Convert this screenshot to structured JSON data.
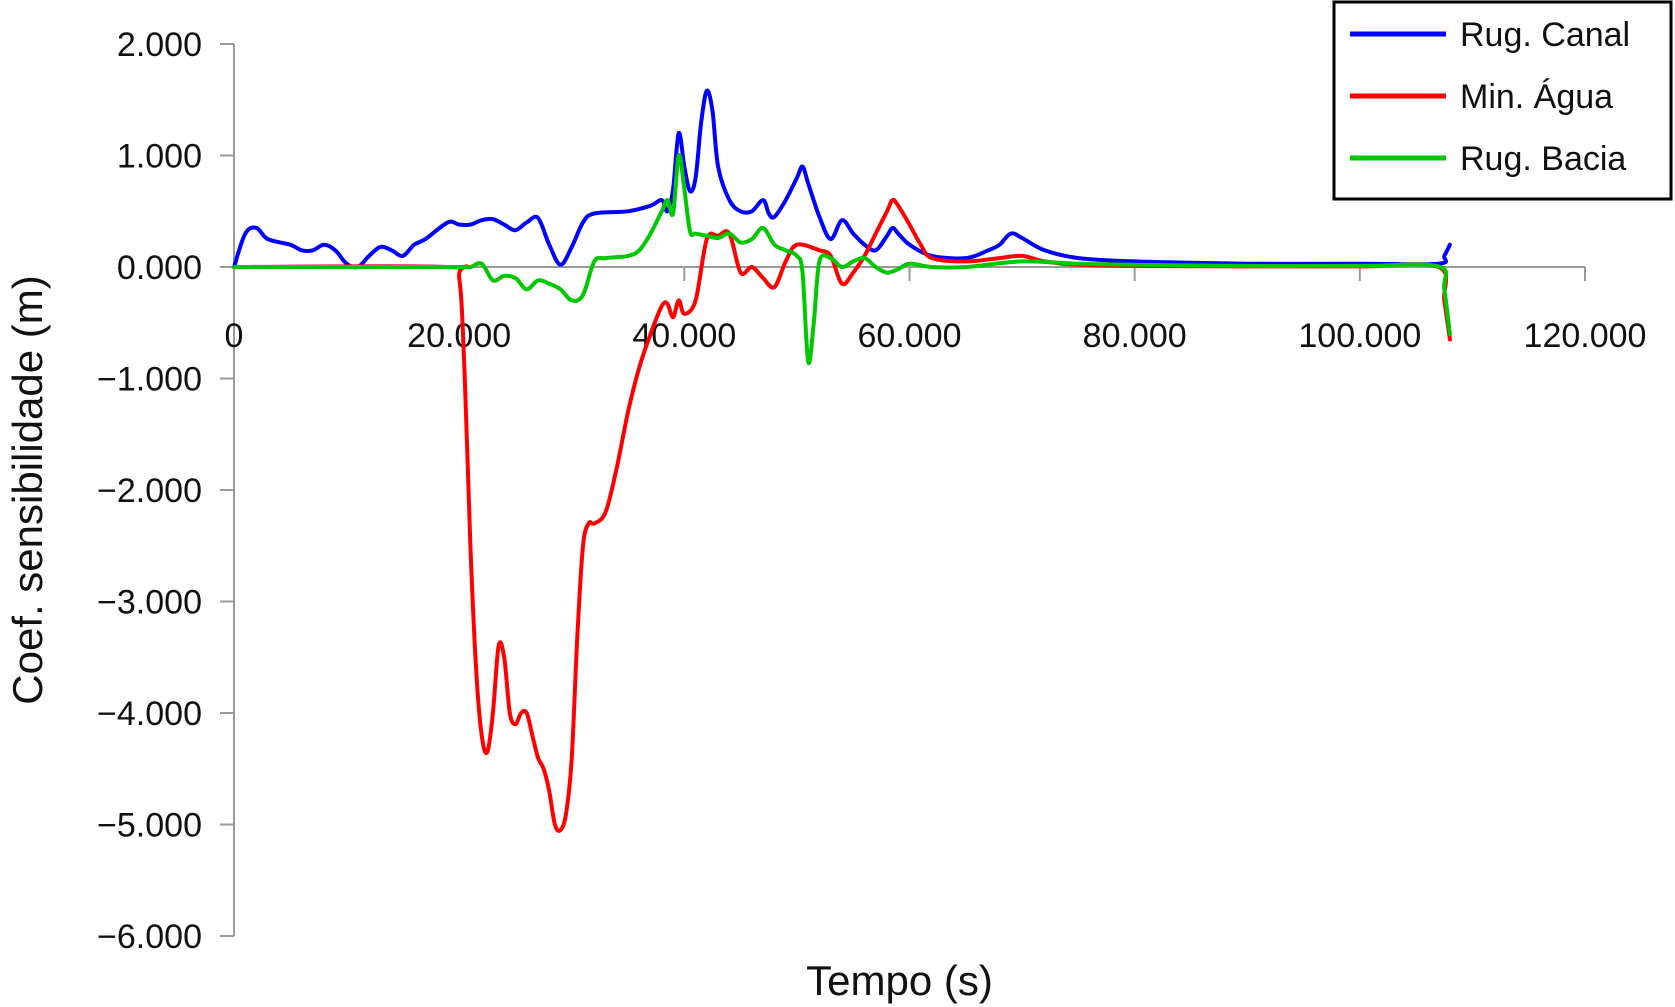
{
  "chart_data": {
    "type": "line",
    "xlabel": "Tempo (s)",
    "ylabel": "Coef. sensibilidade (m)",
    "xlim": [
      0,
      120000
    ],
    "ylim": [
      -6000,
      2000
    ],
    "x_ticks": [
      0,
      20000,
      40000,
      60000,
      80000,
      100000,
      120000
    ],
    "x_tick_labels": [
      "0",
      "20.000",
      "40.000",
      "60.000",
      "80.000",
      "100.000",
      "120.000"
    ],
    "y_ticks": [
      2000,
      1000,
      0,
      -1000,
      -2000,
      -3000,
      -4000,
      -5000,
      -6000
    ],
    "y_tick_labels": [
      "2.000",
      "1.000",
      "0.000",
      "−1.000",
      "−2.000",
      "−3.000",
      "−4.000",
      "−5.000",
      "−6.000"
    ],
    "grid": false,
    "legend_position": "top-right",
    "series": [
      {
        "name": "Rug. Canal",
        "color": "#0000ff",
        "points": [
          [
            0,
            0
          ],
          [
            1000,
            300
          ],
          [
            2000,
            350
          ],
          [
            3000,
            250
          ],
          [
            5000,
            200
          ],
          [
            6000,
            150
          ],
          [
            7000,
            150
          ],
          [
            8000,
            200
          ],
          [
            9000,
            150
          ],
          [
            10000,
            30
          ],
          [
            11000,
            0
          ],
          [
            12000,
            100
          ],
          [
            13000,
            180
          ],
          [
            14000,
            150
          ],
          [
            15000,
            100
          ],
          [
            16000,
            200
          ],
          [
            17000,
            250
          ],
          [
            19000,
            400
          ],
          [
            20000,
            380
          ],
          [
            21000,
            380
          ],
          [
            22000,
            420
          ],
          [
            23000,
            430
          ],
          [
            24000,
            380
          ],
          [
            25000,
            330
          ],
          [
            26000,
            400
          ],
          [
            27000,
            440
          ],
          [
            28000,
            200
          ],
          [
            29000,
            20
          ],
          [
            30000,
            180
          ],
          [
            31000,
            400
          ],
          [
            32000,
            480
          ],
          [
            35000,
            500
          ],
          [
            37000,
            550
          ],
          [
            38000,
            600
          ],
          [
            38500,
            500
          ],
          [
            39000,
            700
          ],
          [
            39500,
            1200
          ],
          [
            40000,
            900
          ],
          [
            40500,
            680
          ],
          [
            41000,
            800
          ],
          [
            41500,
            1300
          ],
          [
            42000,
            1580
          ],
          [
            42500,
            1400
          ],
          [
            43000,
            900
          ],
          [
            44000,
            600
          ],
          [
            45000,
            500
          ],
          [
            46000,
            500
          ],
          [
            47000,
            600
          ],
          [
            47500,
            480
          ],
          [
            48000,
            450
          ],
          [
            49000,
            600
          ],
          [
            50000,
            800
          ],
          [
            50500,
            900
          ],
          [
            51000,
            750
          ],
          [
            52000,
            450
          ],
          [
            53000,
            250
          ],
          [
            54000,
            420
          ],
          [
            55000,
            300
          ],
          [
            56000,
            200
          ],
          [
            57000,
            150
          ],
          [
            58000,
            280
          ],
          [
            58500,
            350
          ],
          [
            59000,
            300
          ],
          [
            60000,
            200
          ],
          [
            62000,
            100
          ],
          [
            65000,
            80
          ],
          [
            67000,
            150
          ],
          [
            68000,
            200
          ],
          [
            69000,
            300
          ],
          [
            70000,
            260
          ],
          [
            72000,
            150
          ],
          [
            75000,
            80
          ],
          [
            80000,
            50
          ],
          [
            90000,
            30
          ],
          [
            100000,
            30
          ],
          [
            107000,
            30
          ],
          [
            107500,
            100
          ],
          [
            108000,
            200
          ]
        ]
      },
      {
        "name": "Min. Água",
        "color": "#ff0000",
        "points": [
          [
            0,
            0
          ],
          [
            19000,
            0
          ],
          [
            20000,
            -100
          ],
          [
            20500,
            -1000
          ],
          [
            21000,
            -2500
          ],
          [
            21500,
            -3600
          ],
          [
            22000,
            -4200
          ],
          [
            22500,
            -4350
          ],
          [
            23000,
            -4000
          ],
          [
            23500,
            -3400
          ],
          [
            24000,
            -3500
          ],
          [
            24500,
            -4000
          ],
          [
            25000,
            -4100
          ],
          [
            25500,
            -4000
          ],
          [
            26000,
            -4000
          ],
          [
            26500,
            -4200
          ],
          [
            27000,
            -4400
          ],
          [
            27500,
            -4500
          ],
          [
            28000,
            -4700
          ],
          [
            28500,
            -5000
          ],
          [
            29000,
            -5050
          ],
          [
            29500,
            -4900
          ],
          [
            30000,
            -4400
          ],
          [
            30500,
            -3300
          ],
          [
            31000,
            -2500
          ],
          [
            31500,
            -2300
          ],
          [
            32000,
            -2300
          ],
          [
            33000,
            -2200
          ],
          [
            34000,
            -1800
          ],
          [
            35000,
            -1300
          ],
          [
            36000,
            -900
          ],
          [
            37000,
            -600
          ],
          [
            38000,
            -350
          ],
          [
            38500,
            -330
          ],
          [
            39000,
            -450
          ],
          [
            39500,
            -300
          ],
          [
            40000,
            -420
          ],
          [
            41000,
            -300
          ],
          [
            42000,
            250
          ],
          [
            43000,
            280
          ],
          [
            44000,
            300
          ],
          [
            45000,
            -50
          ],
          [
            46000,
            0
          ],
          [
            47000,
            -100
          ],
          [
            48000,
            -180
          ],
          [
            49000,
            50
          ],
          [
            50000,
            200
          ],
          [
            52000,
            150
          ],
          [
            53000,
            100
          ],
          [
            54000,
            -150
          ],
          [
            55000,
            -50
          ],
          [
            56000,
            100
          ],
          [
            57000,
            300
          ],
          [
            58000,
            500
          ],
          [
            58500,
            600
          ],
          [
            59000,
            550
          ],
          [
            60000,
            380
          ],
          [
            61000,
            200
          ],
          [
            62000,
            80
          ],
          [
            65000,
            50
          ],
          [
            68000,
            80
          ],
          [
            70000,
            100
          ],
          [
            72000,
            50
          ],
          [
            75000,
            20
          ],
          [
            80000,
            10
          ],
          [
            90000,
            5
          ],
          [
            100000,
            5
          ],
          [
            107000,
            0
          ],
          [
            107500,
            -300
          ],
          [
            108000,
            -650
          ]
        ]
      },
      {
        "name": "Rug. Bacia",
        "color": "#00c800",
        "points": [
          [
            0,
            0
          ],
          [
            19000,
            0
          ],
          [
            20000,
            0
          ],
          [
            21000,
            0
          ],
          [
            22000,
            30
          ],
          [
            23000,
            -120
          ],
          [
            24000,
            -80
          ],
          [
            25000,
            -100
          ],
          [
            26000,
            -200
          ],
          [
            27000,
            -120
          ],
          [
            28000,
            -150
          ],
          [
            29000,
            -200
          ],
          [
            30000,
            -300
          ],
          [
            31000,
            -250
          ],
          [
            32000,
            50
          ],
          [
            33000,
            80
          ],
          [
            35000,
            100
          ],
          [
            36000,
            150
          ],
          [
            37000,
            300
          ],
          [
            38000,
            500
          ],
          [
            38500,
            600
          ],
          [
            39000,
            480
          ],
          [
            39500,
            1000
          ],
          [
            40000,
            700
          ],
          [
            40500,
            320
          ],
          [
            41000,
            300
          ],
          [
            42000,
            280
          ],
          [
            43000,
            260
          ],
          [
            44000,
            300
          ],
          [
            45000,
            220
          ],
          [
            46000,
            250
          ],
          [
            47000,
            350
          ],
          [
            48000,
            200
          ],
          [
            49000,
            150
          ],
          [
            50000,
            100
          ],
          [
            50500,
            -50
          ],
          [
            51000,
            -850
          ],
          [
            51500,
            -500
          ],
          [
            52000,
            50
          ],
          [
            53000,
            80
          ],
          [
            54000,
            0
          ],
          [
            55000,
            50
          ],
          [
            56000,
            80
          ],
          [
            57000,
            0
          ],
          [
            58000,
            -50
          ],
          [
            59000,
            -20
          ],
          [
            60000,
            30
          ],
          [
            62000,
            0
          ],
          [
            65000,
            0
          ],
          [
            70000,
            50
          ],
          [
            75000,
            30
          ],
          [
            80000,
            20
          ],
          [
            90000,
            10
          ],
          [
            100000,
            10
          ],
          [
            107000,
            5
          ],
          [
            107500,
            -200
          ],
          [
            108000,
            -600
          ]
        ]
      }
    ]
  }
}
